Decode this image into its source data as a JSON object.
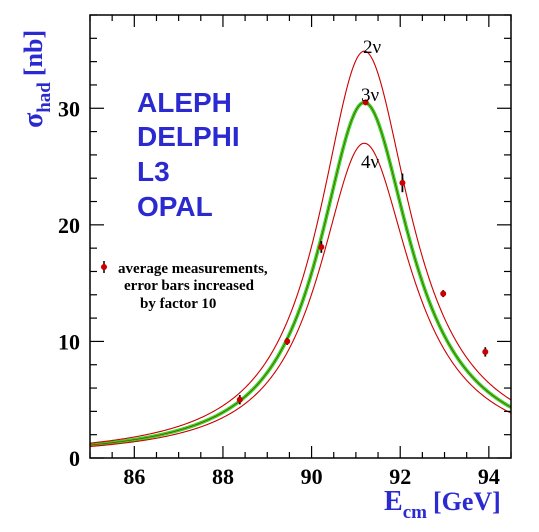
{
  "chart_data": {
    "type": "line",
    "xlabel": "E",
    "xlabel_sub": "cm",
    "xlabel_unit": "[GeV]",
    "ylabel": "σ",
    "ylabel_sub": "had",
    "ylabel_unit": "[nb]",
    "xlim": [
      85,
      94.5
    ],
    "ylim": [
      0,
      38
    ],
    "x_ticks": [
      86,
      88,
      90,
      92,
      94
    ],
    "y_ticks": [
      0,
      10,
      20,
      30
    ],
    "grid": false,
    "experiments": [
      "ALEPH",
      "DELPHI",
      "L3",
      "OPAL"
    ],
    "series": [
      {
        "name": "2ν",
        "label": "2ν",
        "color": "#cc0000",
        "peak_x": 91.19,
        "peak_y": 34.9,
        "width": 2.495
      },
      {
        "name": "3ν",
        "label": "3ν",
        "color": "#22dd22",
        "peak_x": 91.19,
        "peak_y": 30.5,
        "width": 2.495
      },
      {
        "name": "4ν",
        "label": "4ν",
        "color": "#cc0000",
        "peak_x": 91.19,
        "peak_y": 27.0,
        "width": 2.495
      }
    ],
    "measurements": {
      "legend": [
        "average measurements,",
        "error bars increased",
        "by factor 10"
      ],
      "color": "#cc0000",
      "points": [
        {
          "x": 88.38,
          "y": 5.0,
          "err": 0.4
        },
        {
          "x": 89.45,
          "y": 10.0,
          "err": 0.3
        },
        {
          "x": 90.22,
          "y": 18.1,
          "err": 0.5
        },
        {
          "x": 91.22,
          "y": 30.5,
          "err": 0.2
        },
        {
          "x": 92.05,
          "y": 23.6,
          "err": 0.8
        },
        {
          "x": 92.97,
          "y": 14.1,
          "err": 0.3
        },
        {
          "x": 93.92,
          "y": 9.1,
          "err": 0.4
        }
      ]
    }
  }
}
